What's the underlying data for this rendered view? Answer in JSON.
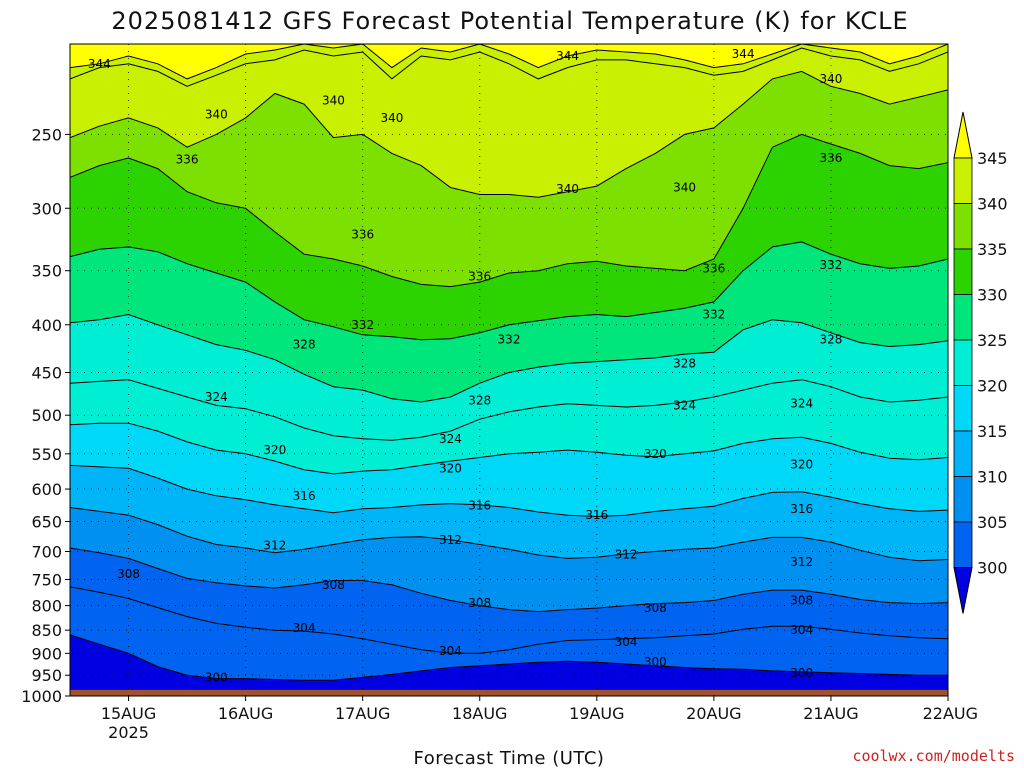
{
  "chart_data": {
    "type": "heatmap",
    "title": "2025081412 GFS Forecast Potential Temperature (K) for KCLE",
    "xlabel": "Forecast Time (UTC)",
    "ylabel": "",
    "credit": "coolwx.com/modelts",
    "x_ticks": [
      {
        "label": "15AUG",
        "sub": "2025",
        "value": "2025-08-15T00"
      },
      {
        "label": "16AUG",
        "sub": "",
        "value": "2025-08-16T00"
      },
      {
        "label": "17AUG",
        "sub": "",
        "value": "2025-08-17T00"
      },
      {
        "label": "18AUG",
        "sub": "",
        "value": "2025-08-18T00"
      },
      {
        "label": "19AUG",
        "sub": "",
        "value": "2025-08-19T00"
      },
      {
        "label": "20AUG",
        "sub": "",
        "value": "2025-08-20T00"
      },
      {
        "label": "21AUG",
        "sub": "",
        "value": "2025-08-21T00"
      },
      {
        "label": "22AUG",
        "sub": "",
        "value": "2025-08-22T00"
      }
    ],
    "xlim": [
      "2025-08-14T12",
      "2025-08-22T00"
    ],
    "y_ticks": [
      250,
      300,
      350,
      400,
      450,
      500,
      550,
      600,
      650,
      700,
      750,
      800,
      850,
      900,
      950,
      1000
    ],
    "ylim": [
      200,
      1000
    ],
    "y_scale": "log",
    "y_reversed": true,
    "grid": true,
    "colorbar": {
      "ticks": [
        345,
        340,
        335,
        330,
        325,
        320,
        315,
        310,
        305,
        300
      ],
      "bins": [
        {
          "min": 345,
          "max": null,
          "color": "#ffff00"
        },
        {
          "min": 340,
          "max": 345,
          "color": "#c8f000"
        },
        {
          "min": 335,
          "max": 340,
          "color": "#7ee000"
        },
        {
          "min": 330,
          "max": 335,
          "color": "#2cd300"
        },
        {
          "min": 325,
          "max": 330,
          "color": "#00e57c"
        },
        {
          "min": 320,
          "max": 325,
          "color": "#00eed4"
        },
        {
          "min": 315,
          "max": 320,
          "color": "#00d8f8"
        },
        {
          "min": 310,
          "max": 315,
          "color": "#00b4f8"
        },
        {
          "min": 305,
          "max": 310,
          "color": "#0090f0"
        },
        {
          "min": 300,
          "max": 305,
          "color": "#0064f0"
        },
        {
          "min": null,
          "max": 300,
          "color": "#0000e0"
        }
      ],
      "below_color": "#0000e0",
      "above_color": "#ffff00"
    },
    "terrain_color": "#a0522d",
    "contour_labels": [
      {
        "text": "344",
        "time": "2025-08-14T18",
        "p": 210
      },
      {
        "text": "344",
        "time": "2025-08-18T18",
        "p": 206
      },
      {
        "text": "344",
        "time": "2025-08-20T06",
        "p": 205
      },
      {
        "text": "340",
        "time": "2025-08-15T18",
        "p": 238
      },
      {
        "text": "340",
        "time": "2025-08-16T18",
        "p": 230
      },
      {
        "text": "340",
        "time": "2025-08-17T06",
        "p": 240
      },
      {
        "text": "340",
        "time": "2025-08-18T18",
        "p": 286
      },
      {
        "text": "340",
        "time": "2025-08-19T18",
        "p": 285
      },
      {
        "text": "340",
        "time": "2025-08-21T00",
        "p": 218
      },
      {
        "text": "336",
        "time": "2025-08-15T12",
        "p": 266
      },
      {
        "text": "336",
        "time": "2025-08-17T00",
        "p": 320
      },
      {
        "text": "336",
        "time": "2025-08-18T00",
        "p": 355
      },
      {
        "text": "336",
        "time": "2025-08-20T00",
        "p": 348
      },
      {
        "text": "336",
        "time": "2025-08-21T00",
        "p": 265
      },
      {
        "text": "332",
        "time": "2025-08-17T00",
        "p": 400
      },
      {
        "text": "332",
        "time": "2025-08-18T06",
        "p": 415
      },
      {
        "text": "332",
        "time": "2025-08-20T00",
        "p": 390
      },
      {
        "text": "332",
        "time": "2025-08-21T00",
        "p": 345
      },
      {
        "text": "328",
        "time": "2025-08-16T12",
        "p": 420
      },
      {
        "text": "328",
        "time": "2025-08-18T00",
        "p": 482
      },
      {
        "text": "328",
        "time": "2025-08-19T18",
        "p": 440
      },
      {
        "text": "328",
        "time": "2025-08-21T00",
        "p": 415
      },
      {
        "text": "324",
        "time": "2025-08-15T18",
        "p": 478
      },
      {
        "text": "324",
        "time": "2025-08-17T18",
        "p": 530
      },
      {
        "text": "324",
        "time": "2025-08-19T18",
        "p": 488
      },
      {
        "text": "324",
        "time": "2025-08-20T18",
        "p": 486
      },
      {
        "text": "320",
        "time": "2025-08-16T06",
        "p": 545
      },
      {
        "text": "320",
        "time": "2025-08-17T18",
        "p": 570
      },
      {
        "text": "320",
        "time": "2025-08-19T12",
        "p": 550
      },
      {
        "text": "320",
        "time": "2025-08-20T18",
        "p": 565
      },
      {
        "text": "316",
        "time": "2025-08-16T12",
        "p": 610
      },
      {
        "text": "316",
        "time": "2025-08-18T00",
        "p": 625
      },
      {
        "text": "316",
        "time": "2025-08-19T00",
        "p": 640
      },
      {
        "text": "316",
        "time": "2025-08-20T18",
        "p": 630
      },
      {
        "text": "312",
        "time": "2025-08-16T06",
        "p": 690
      },
      {
        "text": "312",
        "time": "2025-08-17T18",
        "p": 680
      },
      {
        "text": "312",
        "time": "2025-08-19T06",
        "p": 705
      },
      {
        "text": "312",
        "time": "2025-08-20T18",
        "p": 718
      },
      {
        "text": "308",
        "time": "2025-08-15T00",
        "p": 740
      },
      {
        "text": "308",
        "time": "2025-08-16T18",
        "p": 760
      },
      {
        "text": "308",
        "time": "2025-08-18T00",
        "p": 795
      },
      {
        "text": "308",
        "time": "2025-08-19T12",
        "p": 805
      },
      {
        "text": "308",
        "time": "2025-08-20T18",
        "p": 790
      },
      {
        "text": "304",
        "time": "2025-08-16T12",
        "p": 845
      },
      {
        "text": "304",
        "time": "2025-08-17T18",
        "p": 895
      },
      {
        "text": "304",
        "time": "2025-08-19T06",
        "p": 875
      },
      {
        "text": "304",
        "time": "2025-08-20T18",
        "p": 850
      },
      {
        "text": "300",
        "time": "2025-08-15T18",
        "p": 955
      },
      {
        "text": "300",
        "time": "2025-08-19T12",
        "p": 920
      },
      {
        "text": "300",
        "time": "2025-08-20T18",
        "p": 945
      }
    ],
    "isentropes": [
      {
        "theta": 345,
        "p": [
          212,
          210,
          206,
          210,
          218,
          212,
          205,
          203,
          200,
          202,
          200,
          212,
          202,
          204,
          200,
          205,
          212,
          206,
          203,
          204,
          205,
          208,
          212,
          210,
          205,
          200,
          202,
          204,
          210,
          206,
          200
        ]
      },
      {
        "theta": 344,
        "p": [
          218,
          212,
          210,
          214,
          222,
          216,
          210,
          208,
          203,
          206,
          204,
          218,
          206,
          208,
          204,
          210,
          218,
          212,
          208,
          208,
          210,
          212,
          216,
          214,
          208,
          202,
          206,
          208,
          214,
          210,
          204
        ]
      },
      {
        "theta": 340,
        "p": [
          252,
          245,
          240,
          246,
          258,
          250,
          240,
          226,
          232,
          252,
          250,
          262,
          270,
          285,
          290,
          290,
          292,
          288,
          284,
          272,
          262,
          250,
          246,
          232,
          218,
          214,
          222,
          226,
          232,
          228,
          224
        ]
      },
      {
        "theta": 336,
        "p": [
          278,
          270,
          265,
          272,
          288,
          296,
          300,
          318,
          336,
          340,
          346,
          355,
          362,
          364,
          360,
          352,
          350,
          344,
          342,
          346,
          348,
          350,
          340,
          300,
          258,
          250,
          256,
          262,
          270,
          272,
          268
        ]
      },
      {
        "theta": 332,
        "p": [
          338,
          332,
          330,
          334,
          344,
          352,
          360,
          378,
          395,
          402,
          410,
          412,
          415,
          414,
          408,
          400,
          396,
          392,
          390,
          392,
          388,
          384,
          378,
          350,
          330,
          326,
          336,
          344,
          348,
          346,
          340
        ]
      },
      {
        "theta": 328,
        "p": [
          398,
          395,
          390,
          400,
          410,
          420,
          426,
          436,
          452,
          466,
          470,
          480,
          484,
          478,
          462,
          450,
          444,
          440,
          438,
          436,
          434,
          430,
          428,
          405,
          395,
          398,
          408,
          418,
          422,
          420,
          416
        ]
      },
      {
        "theta": 324,
        "p": [
          462,
          460,
          458,
          468,
          478,
          488,
          492,
          502,
          516,
          526,
          530,
          532,
          528,
          520,
          505,
          496,
          490,
          486,
          488,
          490,
          488,
          484,
          478,
          470,
          462,
          458,
          466,
          478,
          484,
          482,
          478
        ]
      },
      {
        "theta": 320,
        "p": [
          512,
          510,
          510,
          520,
          534,
          545,
          550,
          560,
          572,
          578,
          574,
          572,
          566,
          560,
          555,
          550,
          548,
          545,
          548,
          552,
          554,
          550,
          546,
          536,
          530,
          528,
          536,
          548,
          556,
          558,
          555
        ]
      },
      {
        "theta": 316,
        "p": [
          566,
          568,
          570,
          584,
          600,
          610,
          616,
          624,
          630,
          636,
          630,
          628,
          624,
          622,
          624,
          628,
          635,
          640,
          642,
          640,
          634,
          630,
          626,
          614,
          605,
          604,
          612,
          622,
          630,
          634,
          632
        ]
      },
      {
        "theta": 312,
        "p": [
          628,
          634,
          640,
          655,
          674,
          688,
          694,
          702,
          696,
          688,
          680,
          676,
          675,
          680,
          688,
          696,
          706,
          712,
          710,
          704,
          700,
          696,
          694,
          684,
          676,
          676,
          684,
          698,
          710,
          716,
          714
        ]
      },
      {
        "theta": 308,
        "p": [
          694,
          702,
          712,
          730,
          748,
          756,
          762,
          766,
          760,
          752,
          752,
          760,
          776,
          790,
          800,
          808,
          812,
          808,
          805,
          800,
          796,
          794,
          790,
          778,
          770,
          770,
          778,
          788,
          794,
          796,
          794
        ]
      },
      {
        "theta": 304,
        "p": [
          764,
          774,
          786,
          804,
          822,
          836,
          844,
          850,
          852,
          858,
          868,
          880,
          892,
          900,
          900,
          892,
          880,
          872,
          870,
          868,
          866,
          862,
          858,
          848,
          842,
          842,
          848,
          856,
          862,
          866,
          868
        ]
      },
      {
        "theta": 300,
        "p": [
          860,
          880,
          900,
          930,
          950,
          958,
          958,
          960,
          962,
          962,
          955,
          948,
          940,
          932,
          928,
          924,
          920,
          918,
          920,
          924,
          928,
          932,
          935,
          936,
          940,
          942,
          944,
          946,
          948,
          950,
          950
        ]
      }
    ],
    "isentrope_times_start": "2025-08-14T12",
    "isentrope_step_hours": 6
  }
}
